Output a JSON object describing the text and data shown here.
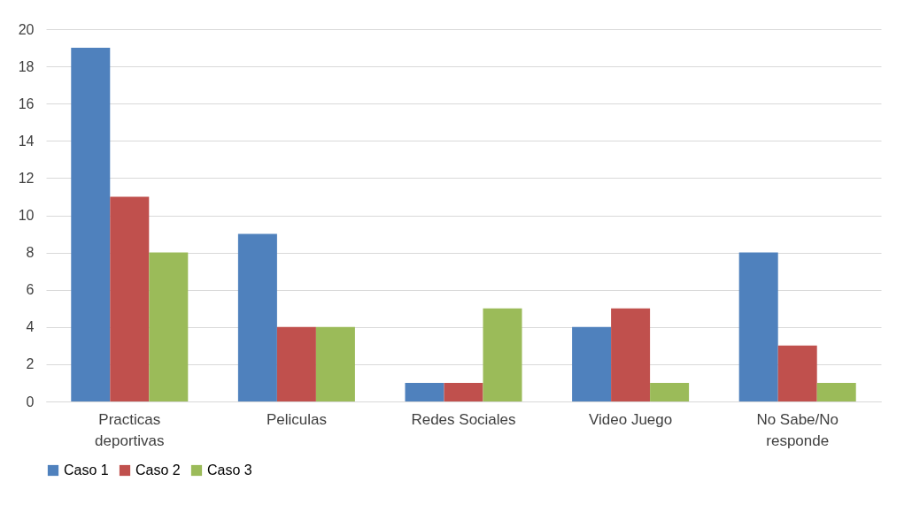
{
  "chart_data": {
    "type": "bar",
    "categories": [
      "Practicas deportivas",
      "Peliculas",
      "Redes Sociales",
      "Video Juego",
      "No Sabe/No responde"
    ],
    "series": [
      {
        "name": "Caso 1",
        "color": "#4f81bd",
        "values": [
          19,
          9,
          1,
          4,
          8
        ]
      },
      {
        "name": "Caso 2",
        "color": "#c0504d",
        "values": [
          11,
          4,
          1,
          5,
          3
        ]
      },
      {
        "name": "Caso 3",
        "color": "#9bbb59",
        "values": [
          8,
          4,
          5,
          1,
          1
        ]
      }
    ],
    "ylim": [
      0,
      20
    ],
    "yticks": [
      0,
      2,
      4,
      6,
      8,
      10,
      12,
      14,
      16,
      18,
      20
    ],
    "grid": "y",
    "legend": "bottom"
  }
}
